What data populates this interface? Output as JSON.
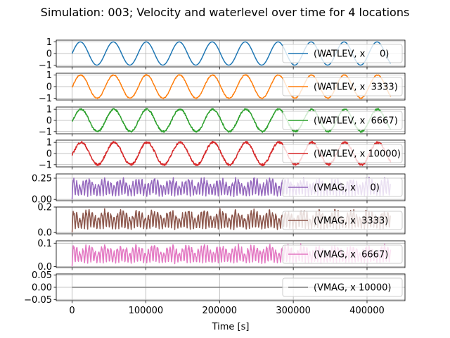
{
  "chart_data": {
    "type": "line",
    "title": "Simulation: 003; Velocity and waterlevel over time for 4 locations",
    "xlabel": "Time [s]",
    "xlim": [
      -21500,
      451500
    ],
    "xticks": [
      0,
      100000,
      200000,
      300000,
      400000
    ],
    "xtick_labels": [
      "0",
      "100000",
      "200000",
      "300000",
      "400000"
    ],
    "grid": true,
    "legend_placement": "right",
    "x_end": 432000,
    "panels": [
      {
        "legend": "(WATLEV, x     0)",
        "color": "#1f77b4",
        "kind": "sine",
        "amplitude": 1.0,
        "period_s": 44714,
        "phase_lag_s": 0,
        "noise": 0.0,
        "ylim": [
          -1.15,
          1.15
        ],
        "yticks": [
          -1,
          0,
          1
        ],
        "ytick_labels": [
          "−1",
          "0",
          "1"
        ]
      },
      {
        "legend": "(WATLEV, x  3333)",
        "color": "#ff7f0e",
        "kind": "sine",
        "amplitude": 1.0,
        "period_s": 44714,
        "phase_lag_s": 400,
        "noise": 0.04,
        "ylim": [
          -1.15,
          1.15
        ],
        "yticks": [
          -1,
          0,
          1
        ],
        "ytick_labels": [
          "−1",
          "0",
          "1"
        ]
      },
      {
        "legend": "(WATLEV, x  6667)",
        "color": "#2ca02c",
        "kind": "sine",
        "amplitude": 1.0,
        "period_s": 44714,
        "phase_lag_s": 800,
        "noise": 0.08,
        "ylim": [
          -1.2,
          1.2
        ],
        "yticks": [
          -1,
          0,
          1
        ],
        "ytick_labels": [
          "−1",
          "0",
          "1"
        ]
      },
      {
        "legend": "(WATLEV, x 10000)",
        "color": "#d62728",
        "kind": "sine",
        "amplitude": 1.0,
        "period_s": 44714,
        "phase_lag_s": 1200,
        "noise": 0.1,
        "ylim": [
          -1.2,
          1.2
        ],
        "yticks": [
          -1,
          0,
          1
        ],
        "ytick_labels": [
          "−1",
          "0",
          "1"
        ]
      },
      {
        "legend": "(VMAG, x     0)",
        "color": "#9467bd",
        "kind": "vmag",
        "amplitude": 0.27,
        "period_s": 44714,
        "noise": 0.0,
        "ylim": [
          -0.015,
          0.3
        ],
        "yticks": [
          0.0,
          0.25
        ],
        "ytick_labels": [
          "0.00",
          "0.25"
        ]
      },
      {
        "legend": "(VMAG, x  3333)",
        "color": "#8c564b",
        "kind": "vmag",
        "amplitude": 0.19,
        "period_s": 44714,
        "noise": 0.0,
        "ylim": [
          -0.01,
          0.2
        ],
        "yticks": [
          0.0,
          0.2
        ],
        "ytick_labels": [
          "0.0",
          "0.2"
        ]
      },
      {
        "legend": "(VMAG, x  6667)",
        "color": "#e377c2",
        "kind": "vmag",
        "amplitude": 0.1,
        "period_s": 44714,
        "noise": 0.0,
        "ylim": [
          -0.005,
          0.11
        ],
        "yticks": [
          0.0,
          0.1
        ],
        "ytick_labels": [
          "0.0",
          "0.1"
        ]
      },
      {
        "legend": "(VMAG, x 10000)",
        "color": "#7f7f7f",
        "kind": "flat",
        "amplitude": 0.0,
        "period_s": 44714,
        "noise": 0.0,
        "ylim": [
          -0.055,
          0.055
        ],
        "yticks": [
          -0.05,
          0.0,
          0.05
        ],
        "ytick_labels": [
          "−0.05",
          "0.00",
          "0.05"
        ]
      }
    ]
  }
}
